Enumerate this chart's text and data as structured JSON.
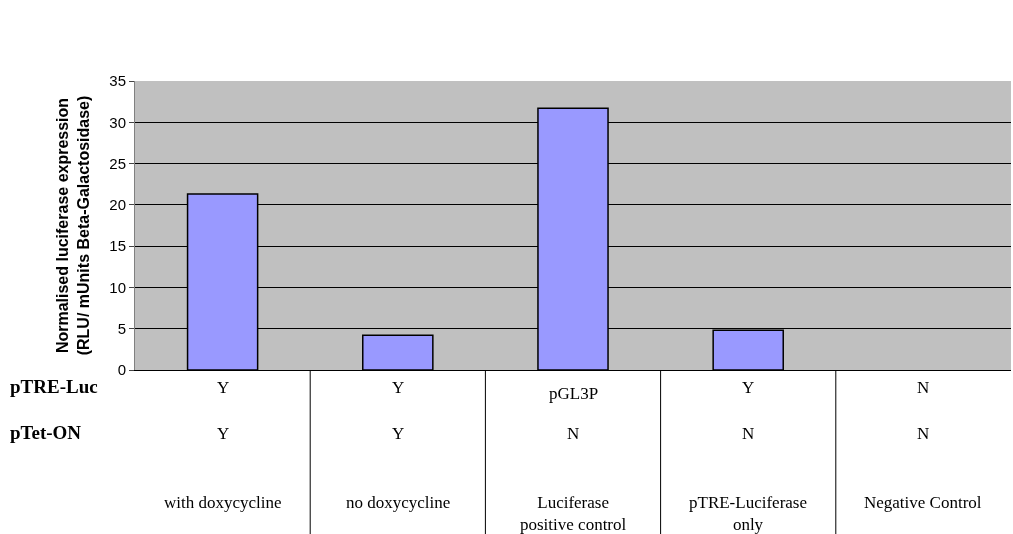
{
  "chart_data": {
    "type": "bar",
    "ylabel": "Normalised luciferase expression\n(RLU/ mUnits Beta-Galactosidase)",
    "categories": [
      null,
      null,
      null,
      null,
      null
    ],
    "values": [
      21.3,
      4.2,
      31.7,
      4.8,
      0
    ],
    "color": "#9999ff",
    "ylim": [
      0,
      35
    ],
    "yticks": [
      0,
      5,
      10,
      15,
      20,
      25,
      30,
      35
    ],
    "grid": "y",
    "annotations": [
      "pTRE-Luc",
      "Y",
      "Y",
      "pGL3P",
      "Y",
      "N",
      "pTet-ON",
      "Y",
      "Y",
      "N",
      "N",
      "N",
      "with doxycycline",
      "no doxycycline",
      "Luciferase positive control",
      "pTRE-Luciferase only",
      "Negative Control"
    ]
  }
}
